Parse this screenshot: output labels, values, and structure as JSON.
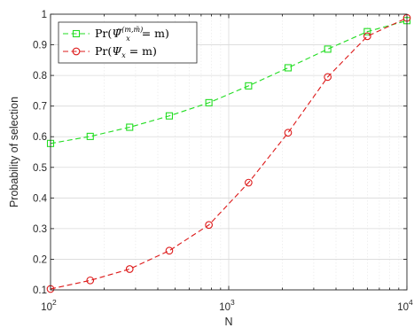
{
  "chart_data": {
    "type": "line",
    "title": "",
    "xlabel": "N",
    "ylabel": "Probability of selection",
    "xscale": "log",
    "xlim": [
      100,
      10000
    ],
    "ylim": [
      0.1,
      1.0
    ],
    "xticks": [
      100,
      1000,
      10000
    ],
    "xtick_labels": [
      {
        "base": "10",
        "exp": "2"
      },
      {
        "base": "10",
        "exp": "3"
      },
      {
        "base": "10",
        "exp": "4"
      }
    ],
    "yticks": [
      0.1,
      0.2,
      0.3,
      0.4,
      0.5,
      0.6,
      0.7,
      0.8,
      0.9,
      1.0
    ],
    "ytick_labels": [
      "0.1",
      "0.2",
      "0.3",
      "0.4",
      "0.5",
      "0.6",
      "0.7",
      "0.8",
      "0.9",
      "1"
    ],
    "grid": true,
    "legend_position": "top-left",
    "x": [
      100,
      167,
      278,
      464,
      774,
      1292,
      2154,
      3594,
      5995,
      10000
    ],
    "series": [
      {
        "name": "Pr(Ψ̃x(m,m̃) = m)",
        "legend_parts": {
          "pre": "Pr(",
          "sym": "Ψ̃",
          "sub": "x",
          "sup": "(m,m̃)",
          "post": " = m)"
        },
        "color": "#22dd22",
        "marker": "square",
        "linestyle": "dashed",
        "values": [
          0.578,
          0.601,
          0.631,
          0.668,
          0.711,
          0.766,
          0.825,
          0.886,
          0.943,
          0.979
        ]
      },
      {
        "name": "Pr(Ψx = m)",
        "legend_parts": {
          "pre": "Pr(",
          "sym": "Ψ",
          "sub": "x",
          "sup": "",
          "post": " = m)"
        },
        "color": "#dd1a1a",
        "marker": "circle",
        "linestyle": "dashed",
        "values": [
          0.103,
          0.131,
          0.168,
          0.228,
          0.312,
          0.45,
          0.613,
          0.795,
          0.928,
          0.988
        ]
      }
    ]
  }
}
